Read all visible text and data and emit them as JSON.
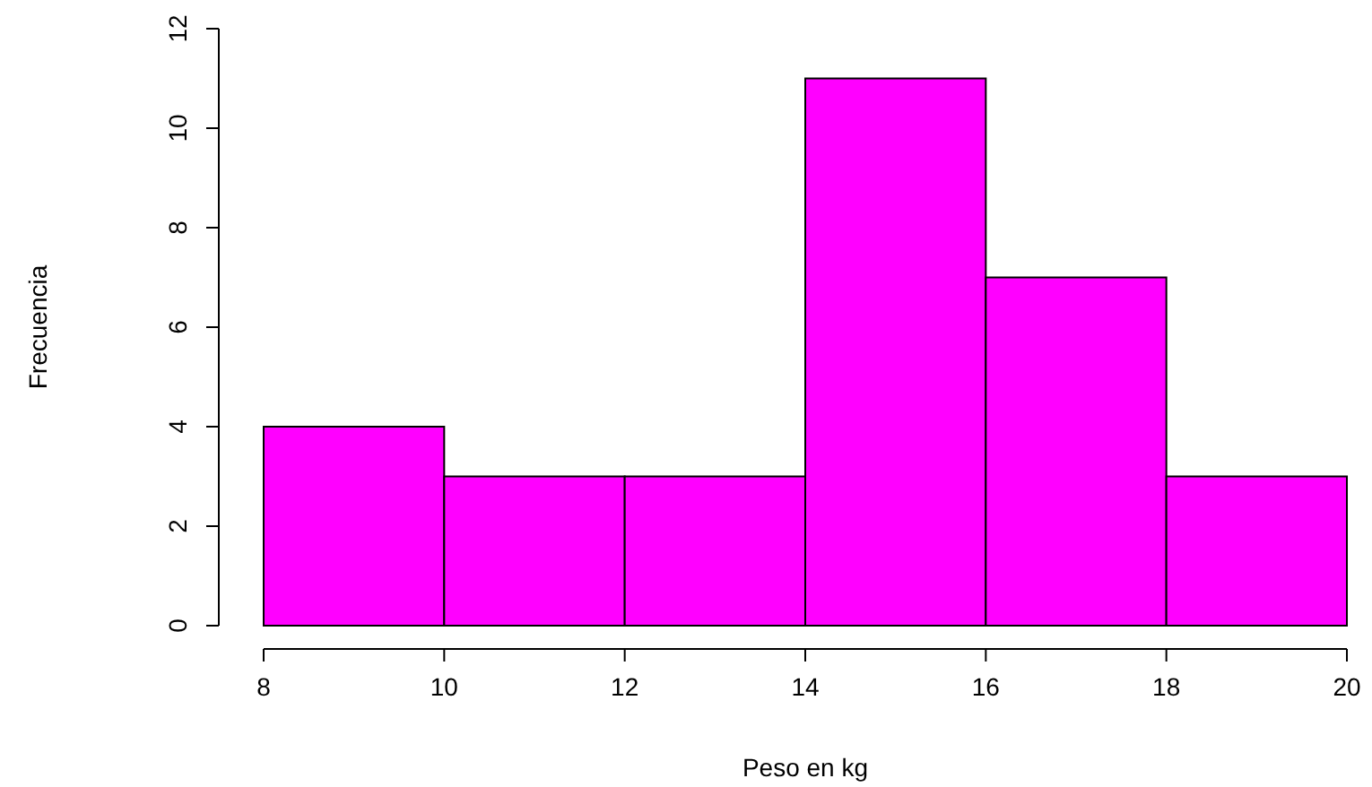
{
  "chart_data": {
    "type": "histogram",
    "xlabel": "Peso en kg",
    "ylabel": "Frecuencia",
    "bins": [
      8,
      10,
      12,
      14,
      16,
      18,
      20
    ],
    "values": [
      4,
      3,
      3,
      11,
      7,
      3
    ],
    "color": "#ff00ff",
    "xlim": [
      8,
      20
    ],
    "xticks": [
      8,
      10,
      12,
      14,
      16,
      18,
      20
    ],
    "ylim": [
      0,
      12
    ],
    "yticks": [
      0,
      2,
      4,
      6,
      8,
      10,
      12
    ],
    "grid": false
  }
}
